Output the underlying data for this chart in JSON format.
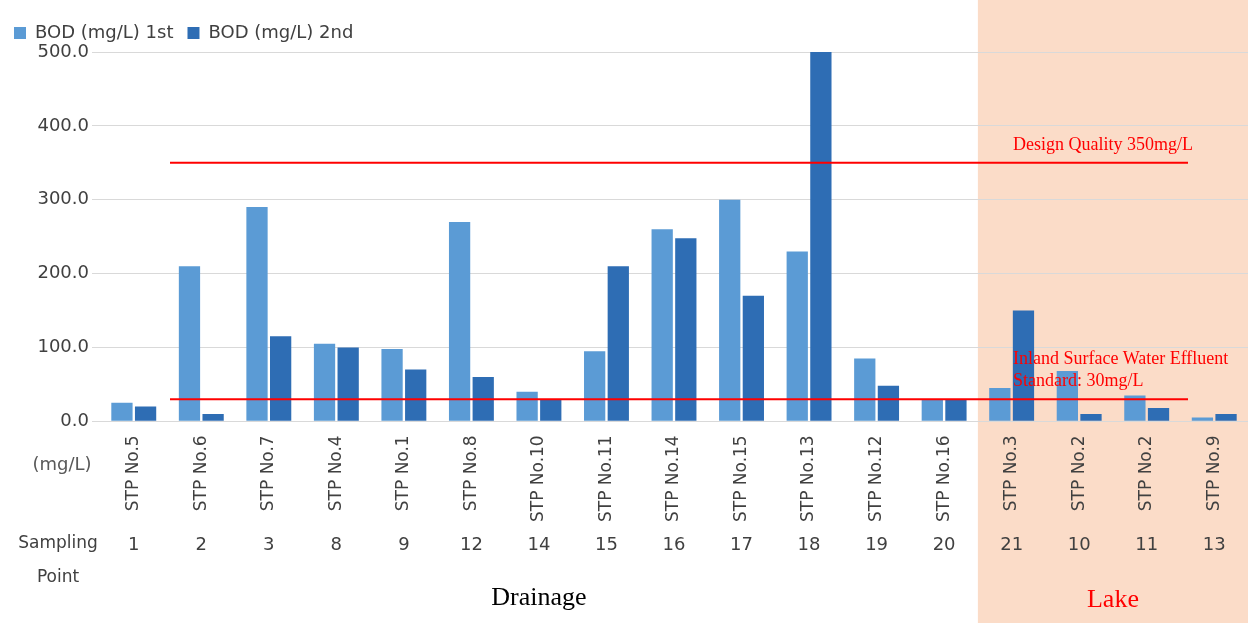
{
  "chart_data": {
    "type": "bar",
    "ylabel": "(mg/L)",
    "categories": [
      "STP No.5",
      "STP No.6",
      "STP No.7",
      "STP No.4",
      "STP No.1",
      "STP No.8",
      "STP No.10",
      "STP No.11",
      "STP No.14",
      "STP No.15",
      "STP No.13",
      "STP No.12",
      "STP No.16",
      "STP No.3",
      "STP No.2",
      "STP No.2",
      "STP No.9"
    ],
    "series": [
      {
        "name": "BOD (mg/L) 1st",
        "color": "#5b9bd5",
        "values": [
          25,
          210,
          290,
          105,
          98,
          270,
          40,
          95,
          260,
          300,
          230,
          85,
          30,
          45,
          68,
          35,
          5
        ]
      },
      {
        "name": "BOD (mg/L) 2nd",
        "color": "#2e6db4",
        "values": [
          20,
          10,
          115,
          100,
          70,
          60,
          30,
          210,
          248,
          170,
          500,
          48,
          30,
          150,
          10,
          18,
          10
        ]
      }
    ],
    "ylim": [
      0,
      500
    ],
    "yticks": [
      {
        "value": 0,
        "label": "0.0"
      },
      {
        "value": 100,
        "label": "100.0"
      },
      {
        "value": 200,
        "label": "200.0"
      },
      {
        "value": 300,
        "label": "300.0"
      },
      {
        "value": 400,
        "label": "400.0"
      },
      {
        "value": 500,
        "label": "500.0"
      }
    ],
    "grid": "y",
    "legend": "top left",
    "ref_lines": [
      {
        "axis": "y",
        "value": 350,
        "label": "Design Quality 350mg/L",
        "color": "#ff0000"
      },
      {
        "axis": "y",
        "value": 30,
        "label": "Inland Surface Water Effluent Standard: 30mg/L",
        "color": "#ff0000"
      }
    ],
    "bands": [
      {
        "axis": "x",
        "from": "STP No.3",
        "to": "STP No.9",
        "label": "Lake",
        "color": "#fbdcc8"
      }
    ],
    "annotations": [
      "1 2 3 8 9 12 14 15 16 17 18 19 20 21 10 11 13",
      "Sampling Point",
      "Drainage"
    ]
  }
}
